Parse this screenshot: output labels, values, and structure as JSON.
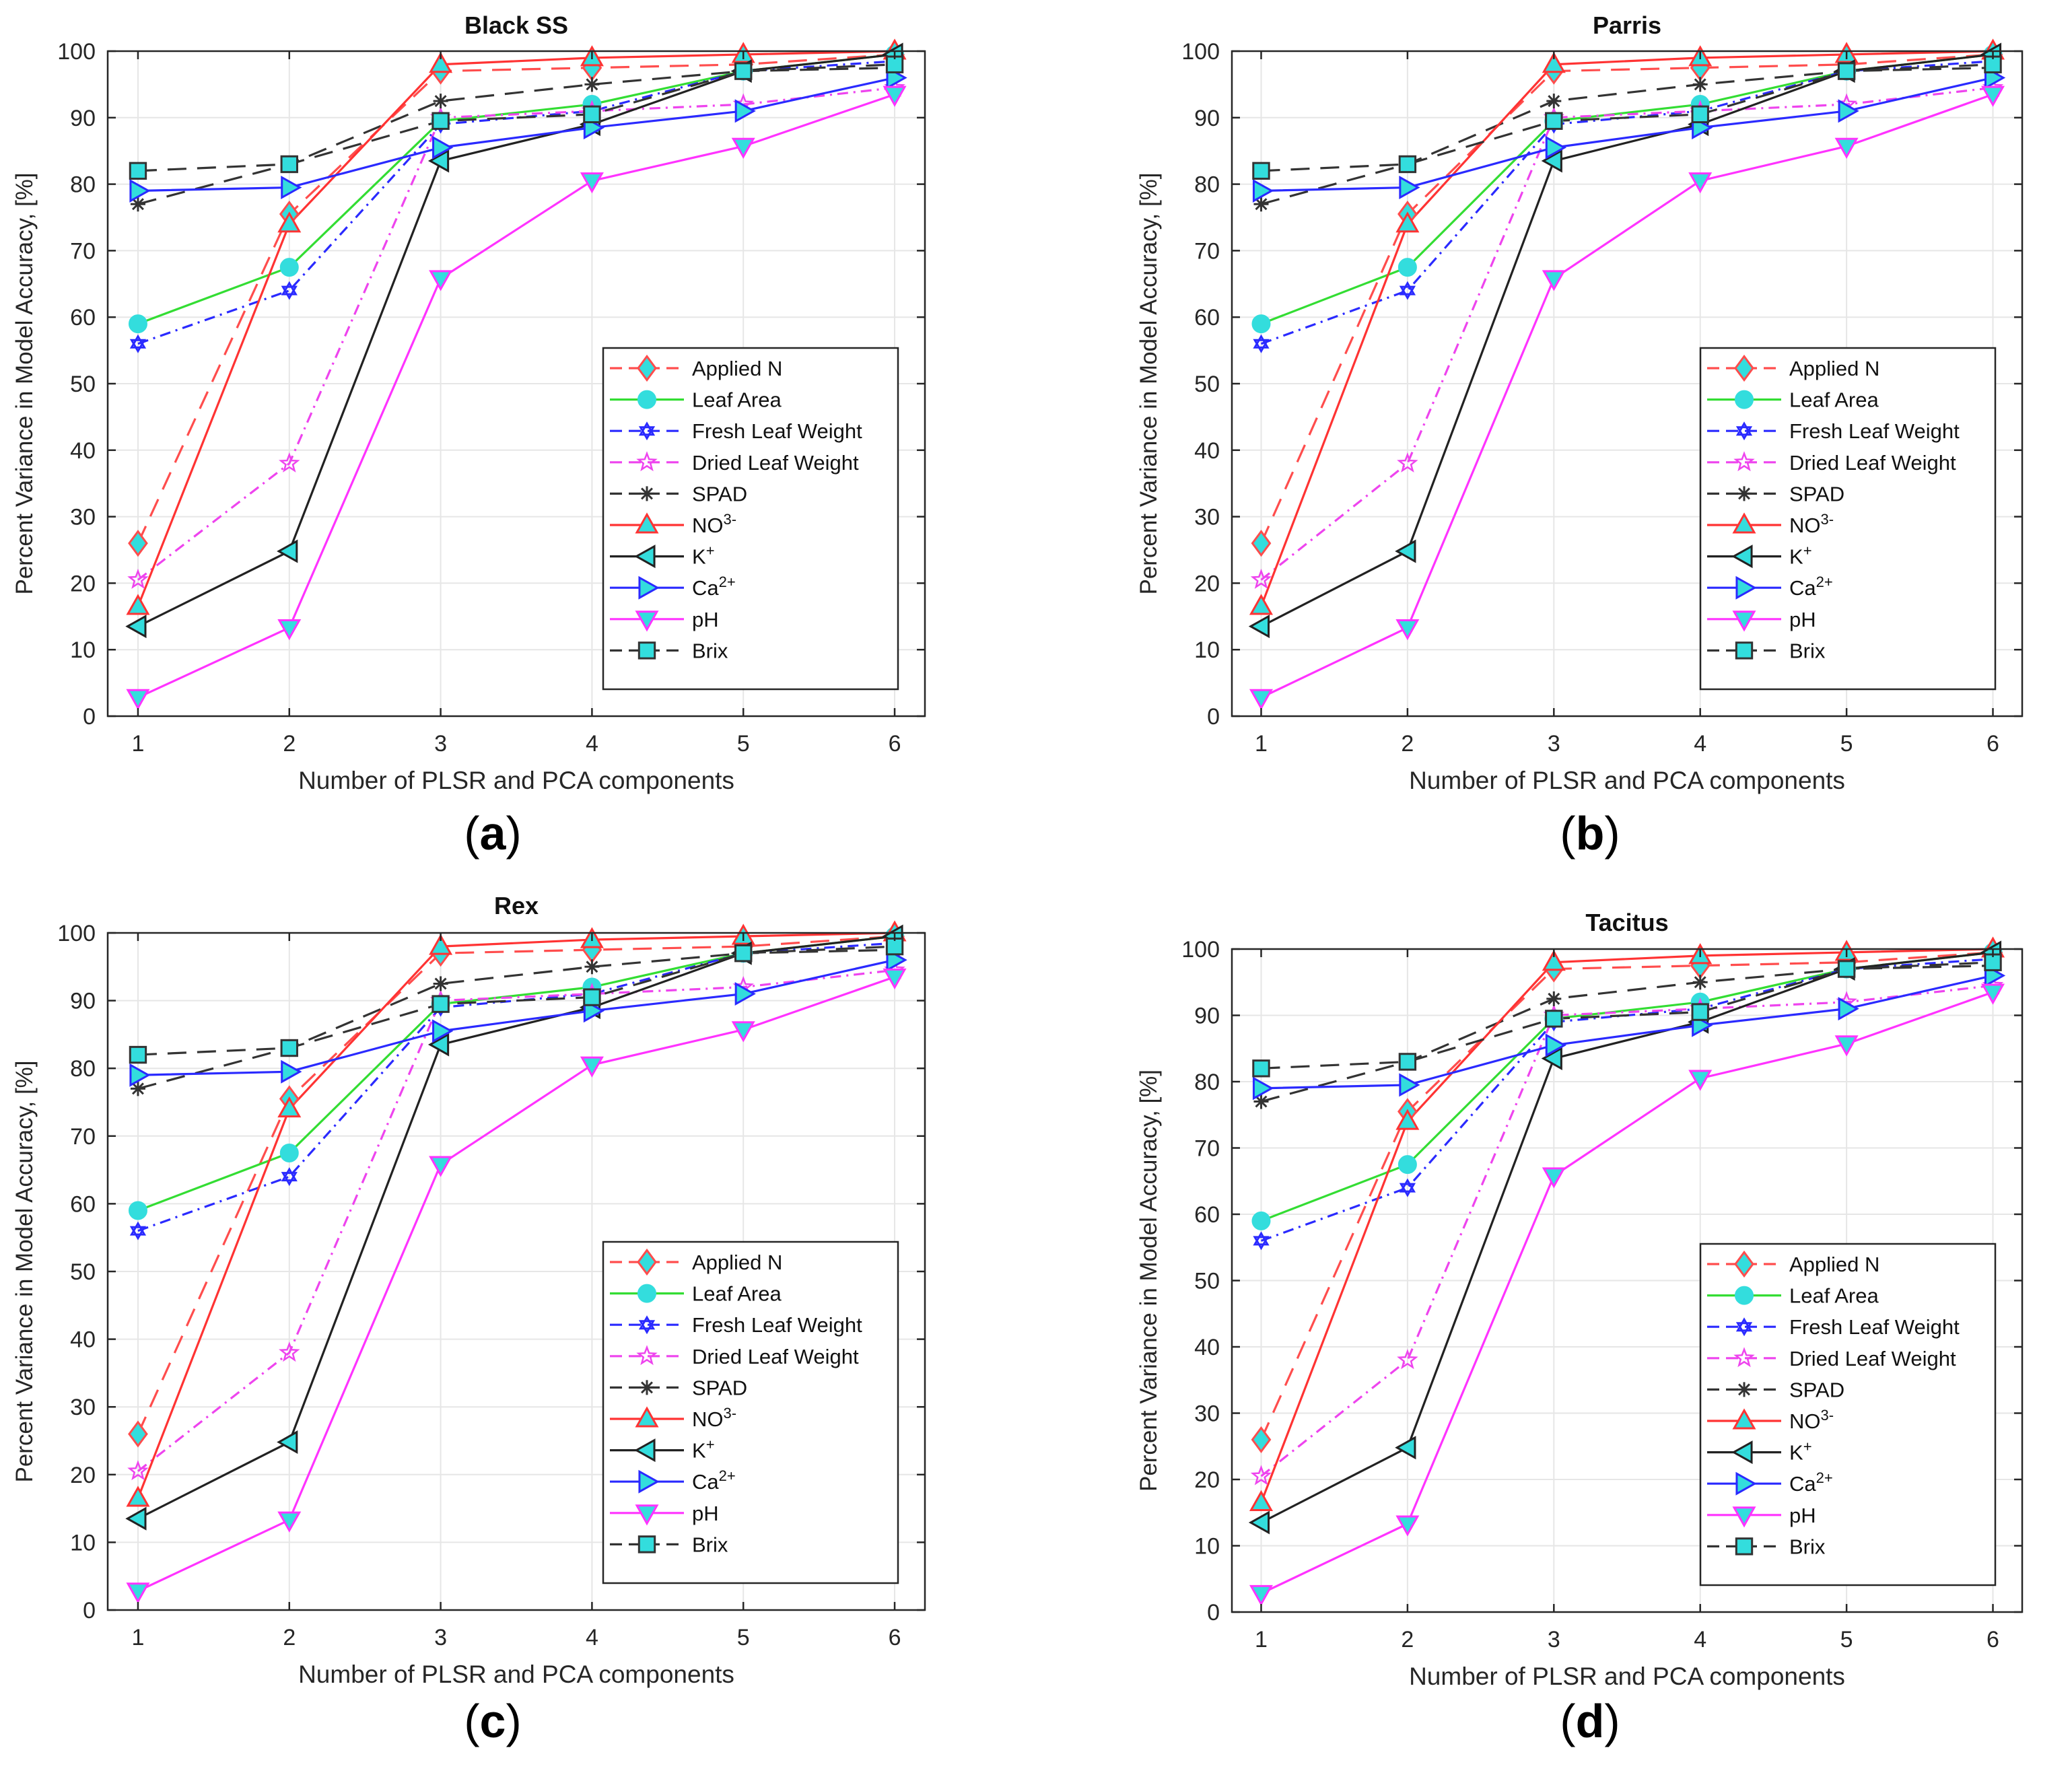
{
  "panel_labels": [
    {
      "open": "(",
      "letter": "a",
      "close": ")"
    },
    {
      "open": "(",
      "letter": "b",
      "close": ")"
    },
    {
      "open": "(",
      "letter": "c",
      "close": ")"
    },
    {
      "open": "(",
      "letter": "d",
      "close": ")"
    }
  ],
  "colors": {
    "applied_n": "#ff4d4d",
    "leaf_area": "#33dd33",
    "fresh_leaf_weight": "#2a2aff",
    "dried_leaf_weight": "#ee44ee",
    "spad": "#333333",
    "no3": "#ff3333",
    "k": "#222222",
    "ca": "#2a2aff",
    "ph": "#ff33ff",
    "brix": "#333333",
    "marker_fill": "#33dddd",
    "grid": "#e6e6e6",
    "axis": "#262626"
  },
  "chart_data": [
    {
      "type": "line",
      "title": "Black SS",
      "xlabel": "Number of PLSR and PCA components",
      "ylabel": "Percent Variance in Model Accuracy, [%]",
      "x": [
        1,
        2,
        3,
        4,
        5,
        6
      ],
      "xlim": [
        0.8,
        6.2
      ],
      "ylim": [
        0,
        100
      ],
      "xticks": [
        "1",
        "2",
        "3",
        "4",
        "5",
        "6"
      ],
      "yticks": [
        "0",
        "10",
        "20",
        "30",
        "40",
        "50",
        "60",
        "70",
        "80",
        "90",
        "100"
      ],
      "grid": true,
      "legend_position": "bottom-right",
      "series": [
        {
          "name": "Applied N",
          "values": [
            26,
            75.5,
            97,
            97.5,
            98,
            99.5
          ]
        },
        {
          "name": "Leaf Area",
          "values": [
            59,
            67.5,
            89.5,
            92,
            97,
            99.5
          ]
        },
        {
          "name": "Fresh Leaf Weight",
          "values": [
            56,
            64,
            89,
            91,
            97,
            98.5
          ]
        },
        {
          "name": "Dried Leaf Weight",
          "values": [
            20.5,
            38,
            90,
            91,
            92,
            94.5
          ]
        },
        {
          "name": "SPAD",
          "values": [
            77,
            83,
            92.5,
            95,
            97,
            97.5
          ]
        },
        {
          "name": "NO3-",
          "values": [
            16.5,
            74,
            98,
            99,
            99.5,
            100
          ]
        },
        {
          "name": "K+",
          "values": [
            13.5,
            24.8,
            83.5,
            89,
            97,
            99.5
          ]
        },
        {
          "name": "Ca2+",
          "values": [
            79,
            79.5,
            85.5,
            88.5,
            91,
            96
          ]
        },
        {
          "name": "pH",
          "values": [
            2.8,
            13.3,
            65.8,
            80.5,
            85.7,
            93.5
          ]
        },
        {
          "name": "Brix",
          "values": [
            82,
            83,
            89.5,
            90.5,
            97,
            98
          ]
        }
      ]
    },
    {
      "type": "line",
      "title": "Parris",
      "xlabel": "Number of PLSR and PCA components",
      "ylabel": "Percent Variance in Model Accuracy, [%]",
      "x": [
        1,
        2,
        3,
        4,
        5,
        6
      ],
      "xlim": [
        0.8,
        6.2
      ],
      "ylim": [
        0,
        100
      ],
      "xticks": [
        "1",
        "2",
        "3",
        "4",
        "5",
        "6"
      ],
      "yticks": [
        "0",
        "10",
        "20",
        "30",
        "40",
        "50",
        "60",
        "70",
        "80",
        "90",
        "100"
      ],
      "grid": true,
      "legend_position": "bottom-right",
      "series": [
        {
          "name": "Applied N",
          "values": [
            26,
            75.5,
            97,
            97.5,
            98,
            99.5
          ]
        },
        {
          "name": "Leaf Area",
          "values": [
            59,
            67.5,
            89.5,
            92,
            97,
            99.5
          ]
        },
        {
          "name": "Fresh Leaf Weight",
          "values": [
            56,
            64,
            89,
            91,
            97,
            98.5
          ]
        },
        {
          "name": "Dried Leaf Weight",
          "values": [
            20.5,
            38,
            90,
            91,
            92,
            94.5
          ]
        },
        {
          "name": "SPAD",
          "values": [
            77,
            83,
            92.5,
            95,
            97,
            97.5
          ]
        },
        {
          "name": "NO3-",
          "values": [
            16.5,
            74,
            98,
            99,
            99.5,
            100
          ]
        },
        {
          "name": "K+",
          "values": [
            13.5,
            24.8,
            83.5,
            89,
            97,
            99.5
          ]
        },
        {
          "name": "Ca2+",
          "values": [
            79,
            79.5,
            85.5,
            88.5,
            91,
            96
          ]
        },
        {
          "name": "pH",
          "values": [
            2.8,
            13.3,
            65.8,
            80.5,
            85.7,
            93.5
          ]
        },
        {
          "name": "Brix",
          "values": [
            82,
            83,
            89.5,
            90.5,
            97,
            98
          ]
        }
      ]
    },
    {
      "type": "line",
      "title": "Rex",
      "xlabel": "Number of PLSR and PCA components",
      "ylabel": "Percent Variance in Model Accuracy, [%]",
      "x": [
        1,
        2,
        3,
        4,
        5,
        6
      ],
      "xlim": [
        0.8,
        6.2
      ],
      "ylim": [
        0,
        100
      ],
      "xticks": [
        "1",
        "2",
        "3",
        "4",
        "5",
        "6"
      ],
      "yticks": [
        "0",
        "10",
        "20",
        "30",
        "40",
        "50",
        "60",
        "70",
        "80",
        "90",
        "100"
      ],
      "grid": true,
      "legend_position": "bottom-right",
      "series": [
        {
          "name": "Applied N",
          "values": [
            26,
            75.5,
            97,
            97.5,
            98,
            99.5
          ]
        },
        {
          "name": "Leaf Area",
          "values": [
            59,
            67.5,
            89.5,
            92,
            97,
            99.5
          ]
        },
        {
          "name": "Fresh Leaf Weight",
          "values": [
            56,
            64,
            89,
            91,
            97,
            98.5
          ]
        },
        {
          "name": "Dried Leaf Weight",
          "values": [
            20.5,
            38,
            90,
            91,
            92,
            94.5
          ]
        },
        {
          "name": "SPAD",
          "values": [
            77,
            83,
            92.5,
            95,
            97,
            97.5
          ]
        },
        {
          "name": "NO3-",
          "values": [
            16.5,
            74,
            98,
            99,
            99.5,
            100
          ]
        },
        {
          "name": "K+",
          "values": [
            13.5,
            24.8,
            83.5,
            89,
            97,
            99.5
          ]
        },
        {
          "name": "Ca2+",
          "values": [
            79,
            79.5,
            85.5,
            88.5,
            91,
            96
          ]
        },
        {
          "name": "pH",
          "values": [
            2.8,
            13.3,
            65.8,
            80.5,
            85.7,
            93.5
          ]
        },
        {
          "name": "Brix",
          "values": [
            82,
            83,
            89.5,
            90.5,
            97,
            98
          ]
        }
      ]
    },
    {
      "type": "line",
      "title": "Tacitus",
      "xlabel": "Number of PLSR and PCA components",
      "ylabel": "Percent Variance in Model Accuracy, [%]",
      "x": [
        1,
        2,
        3,
        4,
        5,
        6
      ],
      "xlim": [
        0.8,
        6.2
      ],
      "ylim": [
        0,
        100
      ],
      "xticks": [
        "1",
        "2",
        "3",
        "4",
        "5",
        "6"
      ],
      "yticks": [
        "0",
        "10",
        "20",
        "30",
        "40",
        "50",
        "60",
        "70",
        "80",
        "90",
        "100"
      ],
      "grid": true,
      "legend_position": "bottom-right",
      "series": [
        {
          "name": "Applied N",
          "values": [
            26,
            75.5,
            97,
            97.5,
            98,
            99.5
          ]
        },
        {
          "name": "Leaf Area",
          "values": [
            59,
            67.5,
            89.5,
            92,
            97,
            99.5
          ]
        },
        {
          "name": "Fresh Leaf Weight",
          "values": [
            56,
            64,
            89,
            91,
            97,
            98.5
          ]
        },
        {
          "name": "Dried Leaf Weight",
          "values": [
            20.5,
            38,
            90,
            91,
            92,
            94.5
          ]
        },
        {
          "name": "SPAD",
          "values": [
            77,
            83,
            92.5,
            95,
            97,
            97.5
          ]
        },
        {
          "name": "NO3-",
          "values": [
            16.5,
            74,
            98,
            99,
            99.5,
            100
          ]
        },
        {
          "name": "K+",
          "values": [
            13.5,
            24.8,
            83.5,
            89,
            97,
            99.5
          ]
        },
        {
          "name": "Ca2+",
          "values": [
            79,
            79.5,
            85.5,
            88.5,
            91,
            96
          ]
        },
        {
          "name": "pH",
          "values": [
            2.8,
            13.3,
            65.8,
            80.5,
            85.7,
            93.5
          ]
        },
        {
          "name": "Brix",
          "values": [
            82,
            83,
            89.5,
            90.5,
            97,
            98
          ]
        }
      ]
    }
  ]
}
